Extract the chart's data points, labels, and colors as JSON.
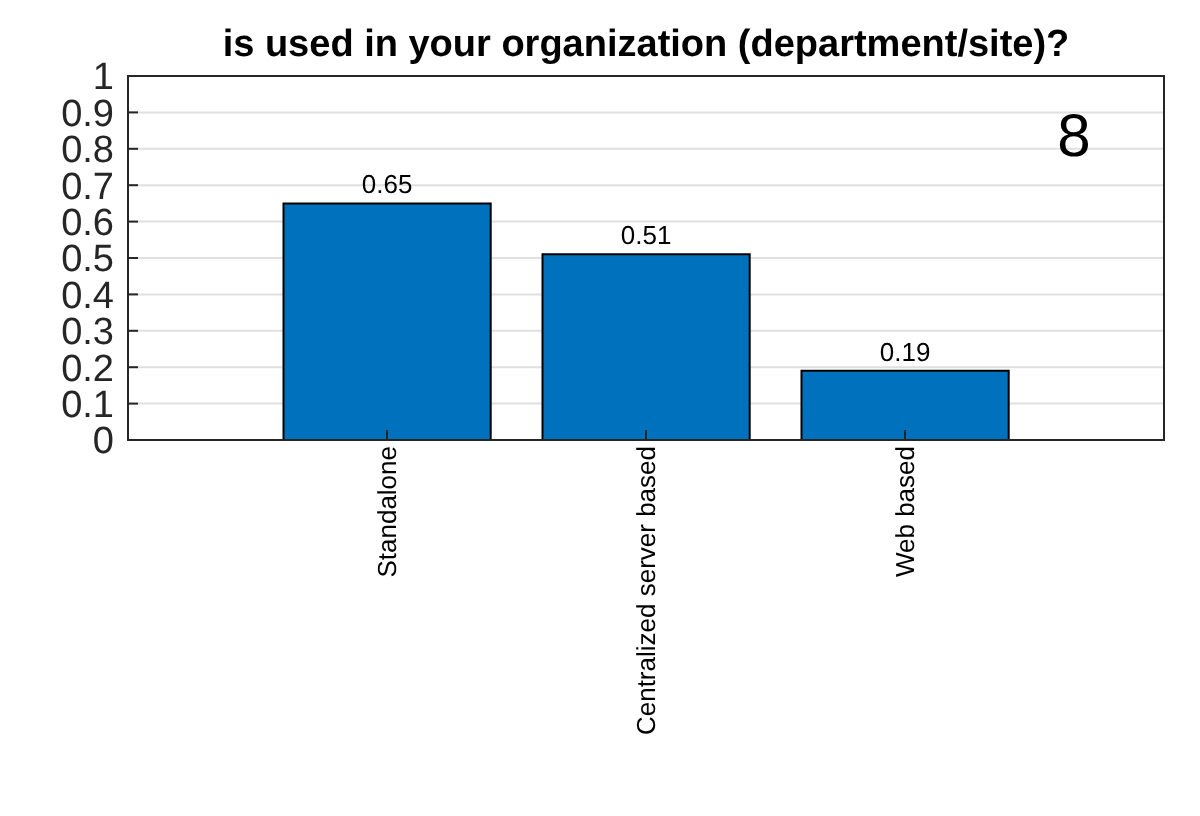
{
  "chart_data": {
    "type": "bar",
    "title": "is used in your organization (department/site)?",
    "categories": [
      "Standalone",
      "Centralized server based",
      "Web based"
    ],
    "values": [
      0.65,
      0.51,
      0.19
    ],
    "color": "#0072bd",
    "data_labels": true,
    "ylim": [
      0,
      1
    ],
    "yticks": [
      0,
      0.1,
      0.2,
      0.3,
      0.4,
      0.5,
      0.6,
      0.7,
      0.8,
      0.9,
      1
    ],
    "grid": "y",
    "annotations": [
      "8"
    ]
  }
}
